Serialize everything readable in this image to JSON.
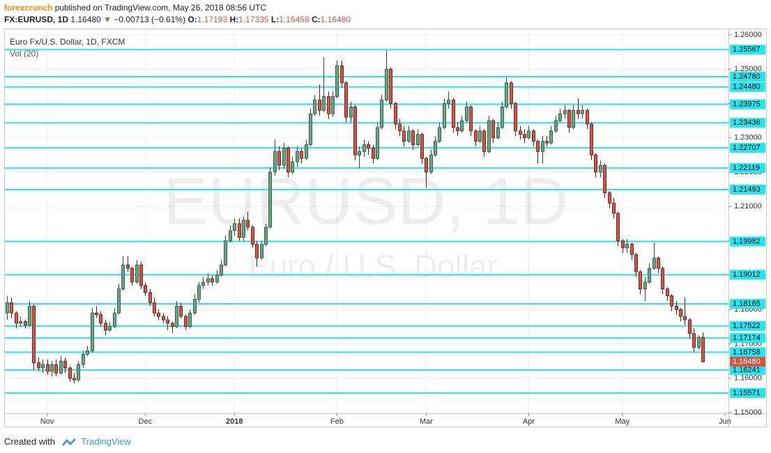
{
  "header": {
    "author": "forexcrunch",
    "published": "published on TradingView.com, May 26, 2018 08:56 UTC",
    "symbol": "FX:EURUSD, 1D",
    "last": "1.16480",
    "arrow": "▼",
    "change": "−0.00713 (−0.61%)",
    "open_label": "O:",
    "open": "1.17193",
    "high_label": "H:",
    "high": "1.17335",
    "low_label": "L:",
    "low": "1.16458",
    "close_label": "C:",
    "close": "1.16480"
  },
  "footer": {
    "created": "Created with",
    "brand": "TradingView"
  },
  "chart_data": {
    "type": "candlestick",
    "title": "Euro Fx/U.S. Dollar, 1D, FXCM",
    "indicator": "Vol (20)",
    "watermark": "EURUSD, 1D",
    "watermark_subtitle": "Euro / U.S. Dollar",
    "up_color": "#6ba583",
    "down_color": "#d75442",
    "level_color": "#22e6f0",
    "grid": true,
    "xlim": [
      -0.47,
      161.8
    ],
    "xticks": [
      {
        "value": 9,
        "label": "Nov"
      },
      {
        "value": 31,
        "label": "Dec"
      },
      {
        "value": 51,
        "label": "2018"
      },
      {
        "value": 74,
        "label": "Feb"
      },
      {
        "value": 94,
        "label": "Mar"
      },
      {
        "value": 117,
        "label": "Apr"
      },
      {
        "value": 138,
        "label": "May"
      },
      {
        "value": 161,
        "label": "Jun"
      }
    ],
    "ylim": [
      1.1498,
      1.2616
    ],
    "yticks": [
      {
        "value": 1.15,
        "label": "1.15000"
      },
      {
        "value": 1.16,
        "label": "1.16000"
      },
      {
        "value": 1.17,
        "label": "1.17000"
      },
      {
        "value": 1.18,
        "label": "1.18000"
      },
      {
        "value": 1.19,
        "label": "1.19000"
      },
      {
        "value": 1.2,
        "label": "1.20000"
      },
      {
        "value": 1.21,
        "label": "1.21000"
      },
      {
        "value": 1.22,
        "label": "1.22000"
      },
      {
        "value": 1.23,
        "label": "1.23000"
      },
      {
        "value": 1.24,
        "label": "1.24000"
      },
      {
        "value": 1.25,
        "label": "1.25000"
      },
      {
        "value": 1.26,
        "label": "1.26000"
      }
    ],
    "levels": [
      1.25567,
      {
        "value": 1.2478,
        "label": "1.24780"
      },
      {
        "value": 1.2448,
        "label": "1.24480"
      },
      1.23975,
      1.23436,
      1.22707,
      1.22119,
      1.21493,
      1.19982,
      1.19012,
      1.18165,
      1.17522,
      1.17174,
      1.16758,
      1.16241,
      1.15571
    ],
    "last_price": {
      "value": 1.1648,
      "label": "1.16480"
    },
    "ohlc": [
      [
        1.179,
        1.184,
        1.177,
        1.182
      ],
      [
        1.182,
        1.1835,
        1.1775,
        1.179
      ],
      [
        1.179,
        1.1795,
        1.1745,
        1.176
      ],
      [
        1.176,
        1.178,
        1.175,
        1.1765
      ],
      [
        1.1765,
        1.177,
        1.1745,
        1.1755
      ],
      [
        1.1755,
        1.1825,
        1.175,
        1.181
      ],
      [
        1.181,
        1.1815,
        1.1625,
        1.1645
      ],
      [
        1.1645,
        1.166,
        1.162,
        1.163
      ],
      [
        1.163,
        1.1655,
        1.1615,
        1.164
      ],
      [
        1.164,
        1.1655,
        1.161,
        1.162
      ],
      [
        1.162,
        1.165,
        1.1605,
        1.164
      ],
      [
        1.164,
        1.1655,
        1.1605,
        1.1615
      ],
      [
        1.1615,
        1.1665,
        1.161,
        1.165
      ],
      [
        1.165,
        1.166,
        1.1615,
        1.163
      ],
      [
        1.163,
        1.1635,
        1.159,
        1.16
      ],
      [
        1.16,
        1.1615,
        1.1585,
        1.1595
      ],
      [
        1.1595,
        1.165,
        1.159,
        1.164
      ],
      [
        1.164,
        1.168,
        1.163,
        1.167
      ],
      [
        1.167,
        1.1695,
        1.1665,
        1.168
      ],
      [
        1.168,
        1.1805,
        1.1675,
        1.179
      ],
      [
        1.179,
        1.181,
        1.1775,
        1.1785
      ],
      [
        1.1785,
        1.1795,
        1.175,
        1.176
      ],
      [
        1.176,
        1.177,
        1.1725,
        1.174
      ],
      [
        1.174,
        1.1765,
        1.1735,
        1.175
      ],
      [
        1.175,
        1.1805,
        1.1745,
        1.179
      ],
      [
        1.179,
        1.1875,
        1.1785,
        1.186
      ],
      [
        1.186,
        1.1955,
        1.1855,
        1.193
      ],
      [
        1.193,
        1.1955,
        1.191,
        1.192
      ],
      [
        1.192,
        1.1925,
        1.187,
        1.188
      ],
      [
        1.188,
        1.1945,
        1.1875,
        1.193
      ],
      [
        1.193,
        1.194,
        1.186,
        1.187
      ],
      [
        1.187,
        1.188,
        1.184,
        1.185
      ],
      [
        1.185,
        1.186,
        1.181,
        1.182
      ],
      [
        1.182,
        1.1835,
        1.178,
        1.179
      ],
      [
        1.179,
        1.18,
        1.177,
        1.178
      ],
      [
        1.178,
        1.179,
        1.176,
        1.177
      ],
      [
        1.177,
        1.178,
        1.174,
        1.176
      ],
      [
        1.176,
        1.1765,
        1.173,
        1.175
      ],
      [
        1.175,
        1.1825,
        1.1745,
        1.181
      ],
      [
        1.181,
        1.182,
        1.1775,
        1.178
      ],
      [
        1.178,
        1.1785,
        1.174,
        1.175
      ],
      [
        1.175,
        1.18,
        1.1745,
        1.179
      ],
      [
        1.179,
        1.1845,
        1.1785,
        1.183
      ],
      [
        1.183,
        1.188,
        1.182,
        1.187
      ],
      [
        1.187,
        1.1895,
        1.186,
        1.188
      ],
      [
        1.188,
        1.1905,
        1.187,
        1.189
      ],
      [
        1.189,
        1.19,
        1.187,
        1.188
      ],
      [
        1.188,
        1.1915,
        1.1875,
        1.19
      ],
      [
        1.19,
        1.1945,
        1.1895,
        1.193
      ],
      [
        1.193,
        1.2015,
        1.1925,
        1.2
      ],
      [
        1.2,
        1.2045,
        1.1995,
        1.203
      ],
      [
        1.203,
        1.2065,
        1.2015,
        1.205
      ],
      [
        1.205,
        1.2065,
        1.2,
        1.201
      ],
      [
        1.201,
        1.207,
        1.2,
        1.206
      ],
      [
        1.206,
        1.2085,
        1.203,
        1.204
      ],
      [
        1.204,
        1.2045,
        1.198,
        1.199
      ],
      [
        1.199,
        1.2,
        1.1925,
        1.195
      ],
      [
        1.195,
        1.2,
        1.1945,
        1.199
      ],
      [
        1.199,
        1.205,
        1.1985,
        1.204
      ],
      [
        1.204,
        1.2215,
        1.2035,
        1.22
      ],
      [
        1.22,
        1.2295,
        1.219,
        1.226
      ],
      [
        1.226,
        1.2275,
        1.2205,
        1.222
      ],
      [
        1.222,
        1.2285,
        1.221,
        1.227
      ],
      [
        1.227,
        1.2275,
        1.2185,
        1.22
      ],
      [
        1.22,
        1.2245,
        1.2195,
        1.223
      ],
      [
        1.223,
        1.2275,
        1.2215,
        1.226
      ],
      [
        1.226,
        1.227,
        1.2225,
        1.224
      ],
      [
        1.224,
        1.2295,
        1.2235,
        1.228
      ],
      [
        1.228,
        1.2385,
        1.2275,
        1.237
      ],
      [
        1.237,
        1.2425,
        1.2365,
        1.241
      ],
      [
        1.241,
        1.2455,
        1.2365,
        1.238
      ],
      [
        1.238,
        1.2535,
        1.2375,
        1.242
      ],
      [
        1.242,
        1.2435,
        1.2355,
        1.237
      ],
      [
        1.237,
        1.2435,
        1.236,
        1.242
      ],
      [
        1.242,
        1.2525,
        1.2415,
        1.251
      ],
      [
        1.251,
        1.2525,
        1.2445,
        1.246
      ],
      [
        1.246,
        1.2465,
        1.2345,
        1.236
      ],
      [
        1.236,
        1.2405,
        1.2345,
        1.239
      ],
      [
        1.239,
        1.2395,
        1.2235,
        1.225
      ],
      [
        1.225,
        1.2275,
        1.221,
        1.226
      ],
      [
        1.226,
        1.2295,
        1.2245,
        1.228
      ],
      [
        1.228,
        1.229,
        1.225,
        1.227
      ],
      [
        1.227,
        1.228,
        1.2225,
        1.224
      ],
      [
        1.224,
        1.2345,
        1.2235,
        1.233
      ],
      [
        1.233,
        1.2425,
        1.2325,
        1.241
      ],
      [
        1.241,
        1.2555,
        1.2405,
        1.25
      ],
      [
        1.25,
        1.2505,
        1.2385,
        1.24
      ],
      [
        1.24,
        1.2405,
        1.2325,
        1.234
      ],
      [
        1.234,
        1.2355,
        1.2305,
        1.232
      ],
      [
        1.232,
        1.2335,
        1.2275,
        1.229
      ],
      [
        1.229,
        1.2335,
        1.2285,
        1.232
      ],
      [
        1.232,
        1.2325,
        1.2265,
        1.228
      ],
      [
        1.228,
        1.2325,
        1.2275,
        1.231
      ],
      [
        1.231,
        1.2315,
        1.2225,
        1.224
      ],
      [
        1.224,
        1.2245,
        1.2155,
        1.22
      ],
      [
        1.22,
        1.2265,
        1.2195,
        1.225
      ],
      [
        1.225,
        1.2305,
        1.2245,
        1.229
      ],
      [
        1.229,
        1.2345,
        1.2285,
        1.233
      ],
      [
        1.233,
        1.2415,
        1.2325,
        1.24
      ],
      [
        1.24,
        1.2435,
        1.2385,
        1.241
      ],
      [
        1.241,
        1.2415,
        1.2315,
        1.233
      ],
      [
        1.233,
        1.2345,
        1.2305,
        1.232
      ],
      [
        1.232,
        1.2365,
        1.2315,
        1.235
      ],
      [
        1.235,
        1.2405,
        1.2345,
        1.239
      ],
      [
        1.239,
        1.2395,
        1.2305,
        1.232
      ],
      [
        1.232,
        1.2325,
        1.2275,
        1.229
      ],
      [
        1.229,
        1.2335,
        1.2285,
        1.232
      ],
      [
        1.232,
        1.2325,
        1.2245,
        1.226
      ],
      [
        1.226,
        1.2365,
        1.2255,
        1.235
      ],
      [
        1.235,
        1.2355,
        1.2285,
        1.23
      ],
      [
        1.23,
        1.2345,
        1.2295,
        1.233
      ],
      [
        1.233,
        1.2405,
        1.2325,
        1.239
      ],
      [
        1.239,
        1.2475,
        1.2385,
        1.246
      ],
      [
        1.246,
        1.2465,
        1.2385,
        1.24
      ],
      [
        1.24,
        1.2405,
        1.2305,
        1.232
      ],
      [
        1.232,
        1.2335,
        1.2295,
        1.231
      ],
      [
        1.231,
        1.2325,
        1.2285,
        1.23
      ],
      [
        1.23,
        1.2335,
        1.2295,
        1.232
      ],
      [
        1.232,
        1.2325,
        1.2275,
        1.229
      ],
      [
        1.229,
        1.2295,
        1.2225,
        1.226
      ],
      [
        1.226,
        1.2305,
        1.2225,
        1.229
      ],
      [
        1.229,
        1.2305,
        1.2275,
        1.2285
      ],
      [
        1.2285,
        1.2335,
        1.228,
        1.232
      ],
      [
        1.232,
        1.2365,
        1.2315,
        1.235
      ],
      [
        1.235,
        1.2385,
        1.2345,
        1.237
      ],
      [
        1.237,
        1.2395,
        1.2355,
        1.238
      ],
      [
        1.238,
        1.2385,
        1.2315,
        1.233
      ],
      [
        1.233,
        1.2395,
        1.2325,
        1.238
      ],
      [
        1.238,
        1.2415,
        1.2355,
        1.237
      ],
      [
        1.237,
        1.2395,
        1.2355,
        1.238
      ],
      [
        1.238,
        1.2385,
        1.2325,
        1.234
      ],
      [
        1.234,
        1.2345,
        1.2235,
        1.225
      ],
      [
        1.225,
        1.2255,
        1.2185,
        1.22
      ],
      [
        1.22,
        1.2235,
        1.2185,
        1.222
      ],
      [
        1.222,
        1.2225,
        1.2125,
        1.214
      ],
      [
        1.214,
        1.2145,
        1.2095,
        1.211
      ],
      [
        1.211,
        1.2125,
        1.2065,
        1.208
      ],
      [
        1.208,
        1.2085,
        1.1985,
        1.2
      ],
      [
        1.2,
        1.2005,
        1.1965,
        1.198
      ],
      [
        1.198,
        1.2005,
        1.1965,
        1.199
      ],
      [
        1.199,
        1.1995,
        1.1945,
        1.196
      ],
      [
        1.196,
        1.1965,
        1.1895,
        1.191
      ],
      [
        1.191,
        1.1915,
        1.1845,
        1.186
      ],
      [
        1.186,
        1.1895,
        1.1825,
        1.188
      ],
      [
        1.188,
        1.1935,
        1.1875,
        1.192
      ],
      [
        1.192,
        1.1995,
        1.1915,
        1.195
      ],
      [
        1.195,
        1.1955,
        1.1905,
        1.192
      ],
      [
        1.192,
        1.1925,
        1.1845,
        1.186
      ],
      [
        1.186,
        1.1865,
        1.1825,
        1.184
      ],
      [
        1.184,
        1.1845,
        1.1795,
        1.181
      ],
      [
        1.181,
        1.1825,
        1.1785,
        1.18
      ],
      [
        1.18,
        1.1805,
        1.1765,
        1.178
      ],
      [
        1.178,
        1.1835,
        1.1755,
        1.177
      ],
      [
        1.177,
        1.1775,
        1.1715,
        1.173
      ],
      [
        1.173,
        1.1745,
        1.1675,
        1.169
      ],
      [
        1.169,
        1.1725,
        1.1685,
        1.1719
      ],
      [
        1.17193,
        1.17335,
        1.16458,
        1.1648
      ]
    ]
  }
}
